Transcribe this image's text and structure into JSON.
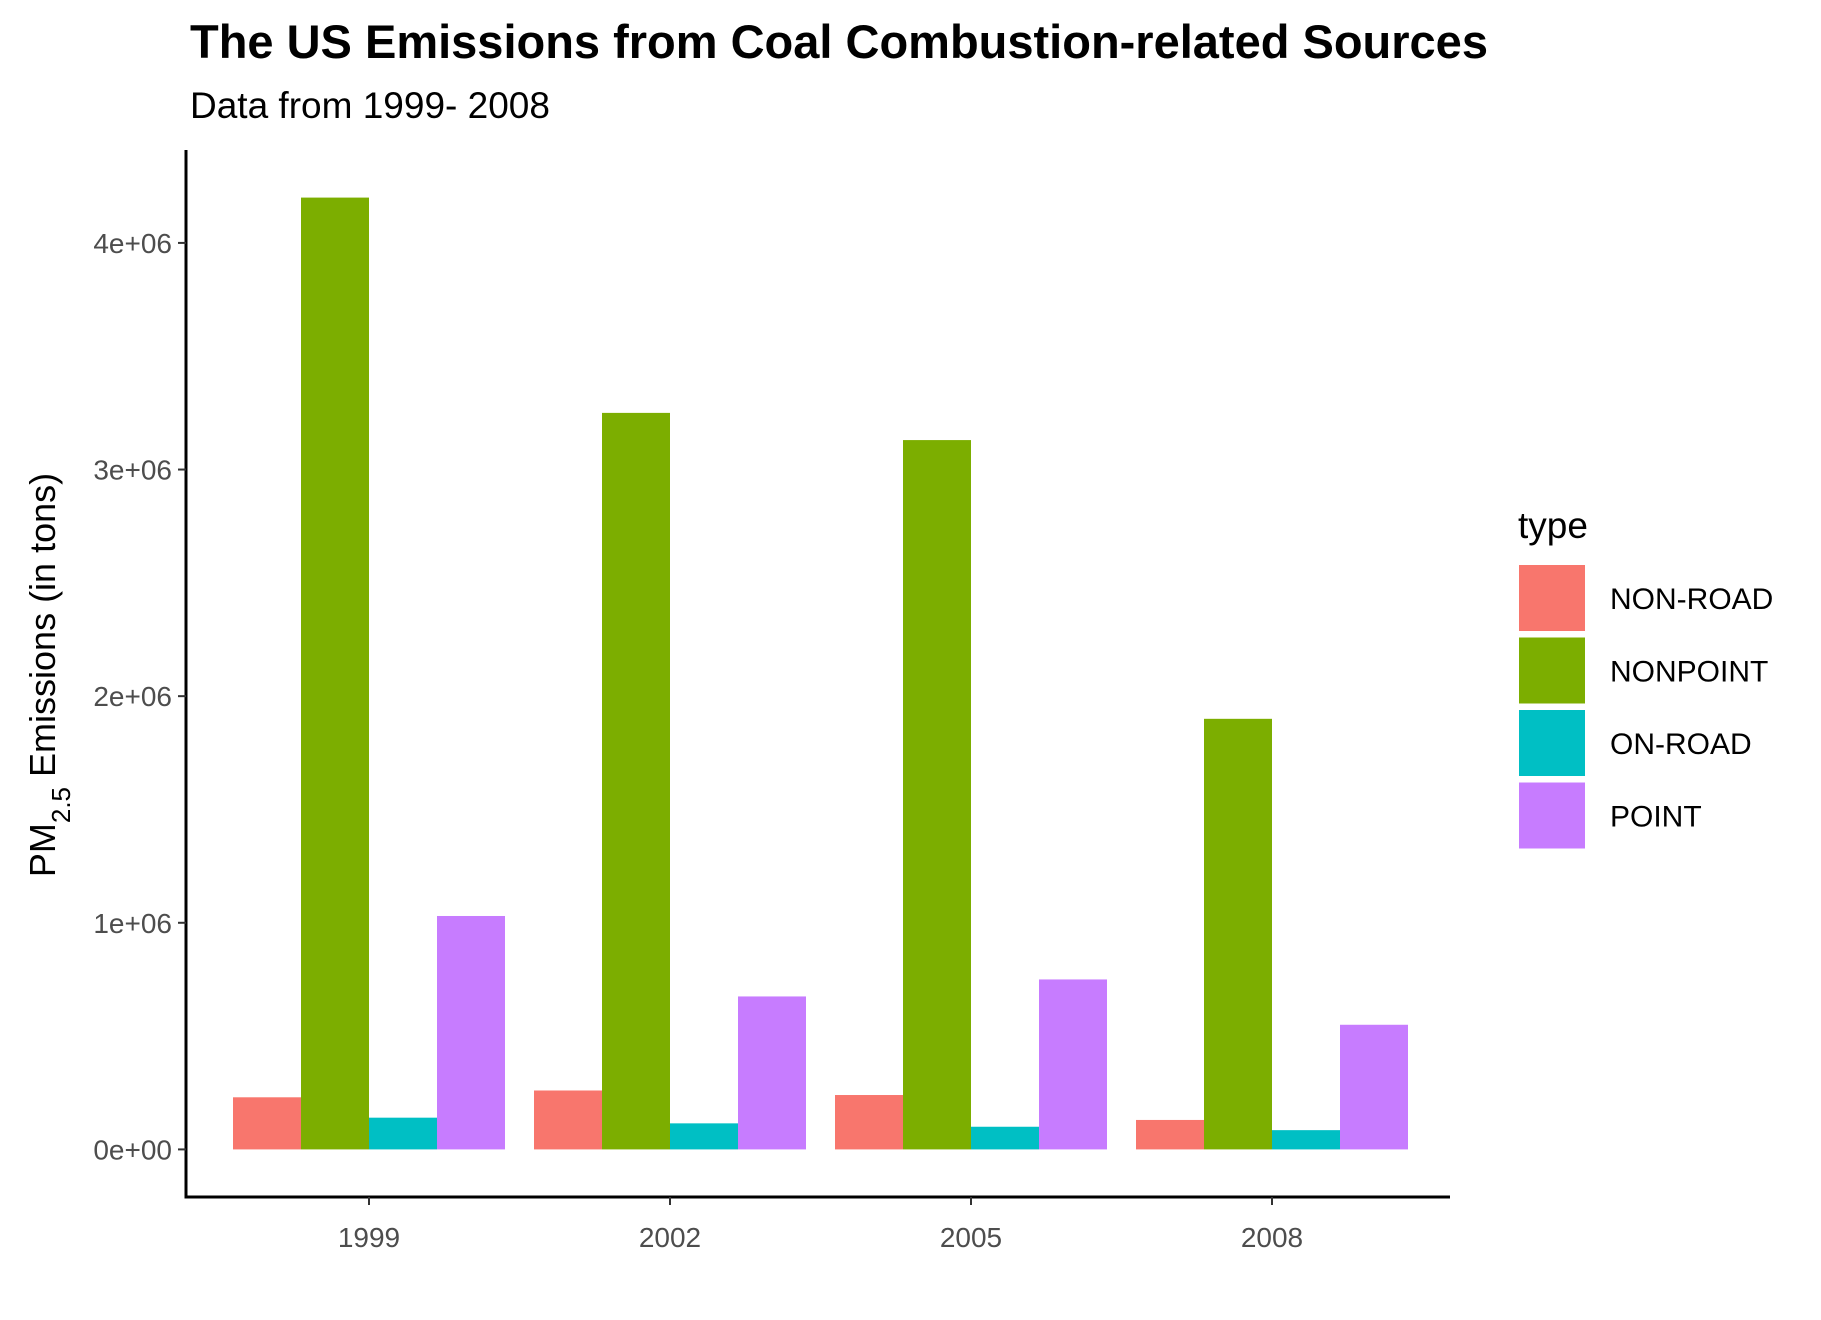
{
  "chart_data": {
    "type": "bar",
    "title": "The US Emissions from Coal Combustion-related Sources",
    "subtitle": "Data from 1999- 2008",
    "ylabel": {
      "prefix": "PM",
      "subscript": "2.5",
      "suffix": " Emissions (in tons)"
    },
    "xlabel": "",
    "categories": [
      "1999",
      "2002",
      "2005",
      "2008"
    ],
    "yticks": [
      {
        "value": 0,
        "label": "0e+00"
      },
      {
        "value": 1000000,
        "label": "1e+06"
      },
      {
        "value": 2000000,
        "label": "2e+06"
      },
      {
        "value": 3000000,
        "label": "3e+06"
      },
      {
        "value": 4000000,
        "label": "4e+06"
      }
    ],
    "ylim": [
      -210000,
      4410000
    ],
    "grid": false,
    "legend": {
      "title": "type",
      "position": "right"
    },
    "series": [
      {
        "name": "NON-ROAD",
        "color": "#F8766D",
        "values": [
          230000,
          260000,
          240000,
          130000
        ]
      },
      {
        "name": "NONPOINT",
        "color": "#7CAE00",
        "values": [
          4200000,
          3250000,
          3130000,
          1900000
        ]
      },
      {
        "name": "ON-ROAD",
        "color": "#00BFC4",
        "values": [
          140000,
          115000,
          100000,
          85000
        ]
      },
      {
        "name": "POINT",
        "color": "#C77CFF",
        "values": [
          1030000,
          675000,
          750000,
          550000
        ]
      }
    ]
  }
}
